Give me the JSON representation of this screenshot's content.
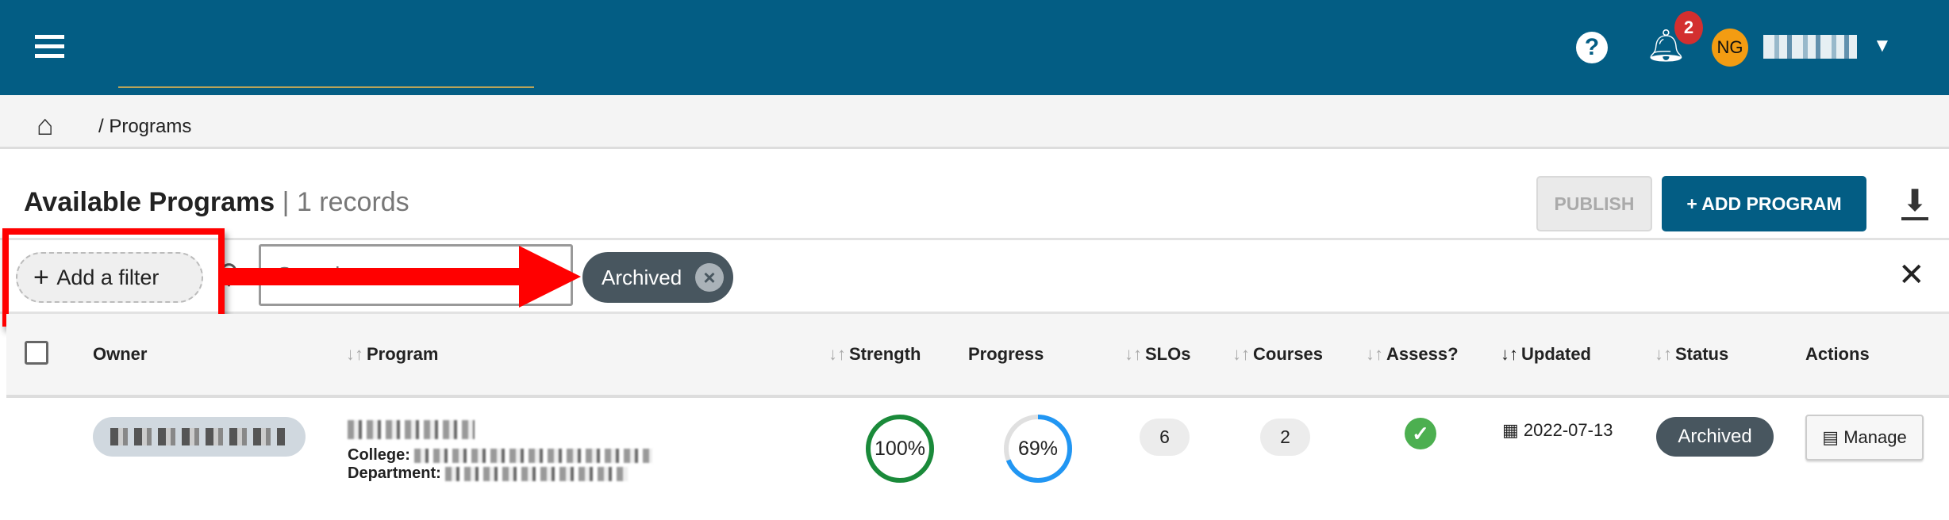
{
  "header": {
    "help_icon": "question-circle-icon",
    "notifications_count": "2",
    "avatar_initials": "NG",
    "brand_color": "#035d84"
  },
  "breadcrumb": {
    "home_icon": "home-icon",
    "current": "/ Programs"
  },
  "page": {
    "title": "Available Programs",
    "record_count": "| 1 records",
    "publish_label": "PUBLISH",
    "add_program_label": "+ ADD PROGRAM"
  },
  "filters": {
    "add_filter_label": "Add a filter",
    "search_placeholder": "Search",
    "active_chip": "Archived"
  },
  "table": {
    "columns": [
      "Owner",
      "Program",
      "Strength",
      "Progress",
      "SLOs",
      "Courses",
      "Assess?",
      "Updated",
      "Status",
      "Actions"
    ],
    "rows": [
      {
        "college_label": "College:",
        "department_label": "Department:",
        "strength": "100%",
        "strength_value": 100,
        "progress": "69%",
        "progress_value": 69,
        "slos": "6",
        "courses": "2",
        "assessed": true,
        "updated": "2022-07-13",
        "status": "Archived",
        "action_label": "Manage"
      }
    ]
  }
}
